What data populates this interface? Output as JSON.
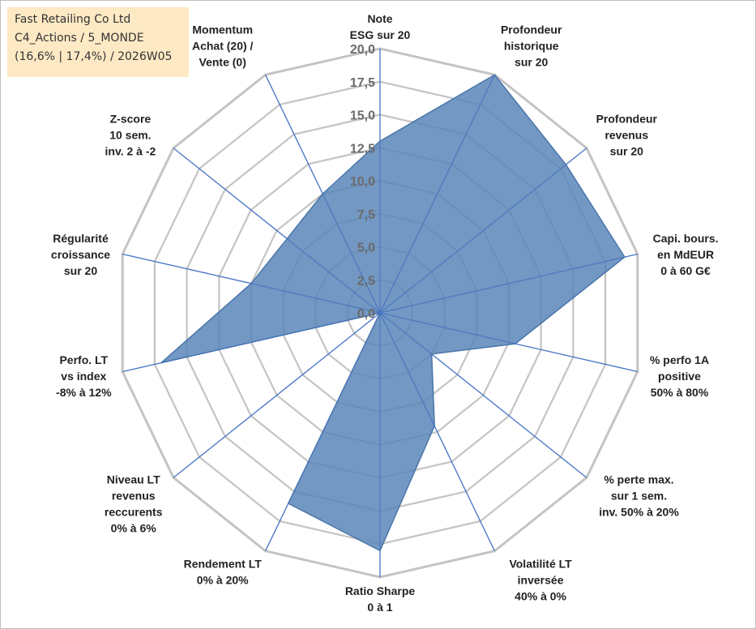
{
  "info": {
    "company": "Fast Retailing Co Ltd",
    "portfolio": "C4_Actions / 5_MONDE",
    "stats": "(16,6% | 17,4%) / 2026W05"
  },
  "colors": {
    "fill": "#5b86b8",
    "stroke": "#4a76aa",
    "grid": "#c4c4c4",
    "spoke": "#4472c4"
  },
  "chart_data": {
    "type": "radar",
    "rmin": 0,
    "rmax": 20,
    "ticks": [
      "0,0",
      "2,5",
      "5,0",
      "7,5",
      "10,0",
      "12,5",
      "15,0",
      "17,5",
      "20,0"
    ],
    "axes": [
      {
        "label": [
          "Note",
          "ESG sur 20"
        ],
        "value": 13.0
      },
      {
        "label": [
          "Profondeur",
          "historique",
          "sur 20"
        ],
        "value": 20.0
      },
      {
        "label": [
          "Profondeur",
          "revenus",
          "sur 20"
        ],
        "value": 18.0
      },
      {
        "label": [
          "Capi. bours.",
          "en MdEUR",
          "0 à 60 G€"
        ],
        "value": 19.0
      },
      {
        "label": [
          "% perfo 1A",
          "positive",
          "50% à 80%"
        ],
        "value": 10.5
      },
      {
        "label": [
          "% perte max.",
          "sur 1 sem.",
          "inv. 50% à 20%"
        ],
        "value": 5.0
      },
      {
        "label": [
          "Volatilité LT",
          "inversée",
          "40% à 0%"
        ],
        "value": 9.5
      },
      {
        "label": [
          "Ratio Sharpe",
          "0 à 1"
        ],
        "value": 18.0
      },
      {
        "label": [
          "Rendement LT",
          "0% à 20%"
        ],
        "value": 16.0
      },
      {
        "label": [
          "Niveau LT",
          "revenus",
          "reccurents",
          "0% à 6%"
        ],
        "value": 0.0
      },
      {
        "label": [
          "Perfo. LT",
          "vs index",
          "-8% à 12%"
        ],
        "value": 17.0
      },
      {
        "label": [
          "Régularité",
          "croissance",
          "sur 20"
        ],
        "value": 10.0
      },
      {
        "label": [
          "Z-score",
          "10 sem.",
          "inv. 2 à -2"
        ],
        "value": 9.0
      },
      {
        "label": [
          "Momentum",
          "Achat (20) /",
          "Vente (0)"
        ],
        "value": 10.0
      }
    ]
  }
}
